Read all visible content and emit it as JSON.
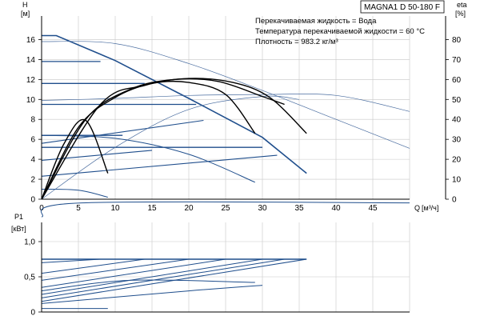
{
  "chart_data": [
    {
      "type": "line",
      "title": "MAGNA1 D 50-180 F",
      "info": [
        "Перекачиваемая жидкость = Вода",
        "Температура перекачиваемой жидкости = 60 °C",
        "Плотность = 983.2 кг/м³"
      ],
      "ylabel": "H",
      "yunit": "[м]",
      "y2label": "eta",
      "y2unit": "[%]",
      "xlabel": "Q",
      "xunit": "[м³/ч]",
      "xlim": [
        0,
        50
      ],
      "ylim": [
        0,
        17
      ],
      "y2lim": [
        0,
        85
      ],
      "xticks": [
        "0",
        "5",
        "10",
        "15",
        "20",
        "25",
        "30",
        "35",
        "40",
        "45"
      ],
      "yticks": [
        "0",
        "2",
        "4",
        "6",
        "8",
        "10",
        "12",
        "14",
        "16"
      ],
      "y2ticks": [
        "0",
        "10",
        "20",
        "30",
        "40",
        "50",
        "60",
        "70",
        "80"
      ],
      "series": [
        {
          "group": "max_curve",
          "color": "#1f4e8c",
          "points": [
            [
              0,
              16.4
            ],
            [
              2,
              16.4
            ],
            [
              10,
              13.9
            ],
            [
              20,
              10.1
            ],
            [
              30,
              6.2
            ],
            [
              36,
              2.6
            ]
          ]
        },
        {
          "group": "constant_pressure",
          "color": "#1f4e8c",
          "points": [
            [
              0,
              13.8
            ],
            [
              8,
              13.8
            ]
          ]
        },
        {
          "group": "constant_pressure",
          "color": "#1f4e8c",
          "points": [
            [
              0,
              11.6
            ],
            [
              14,
              11.6
            ]
          ]
        },
        {
          "group": "constant_pressure",
          "color": "#1f4e8c",
          "points": [
            [
              0,
              9.5
            ],
            [
              21,
              9.5
            ]
          ]
        },
        {
          "group": "constant_pressure",
          "color": "#1f4e8c",
          "points": [
            [
              0,
              6.4
            ],
            [
              11,
              6.4
            ]
          ]
        },
        {
          "group": "constant_pressure",
          "color": "#1f4e8c",
          "points": [
            [
              0,
              5.2
            ],
            [
              30,
              5.2
            ]
          ]
        },
        {
          "group": "proportional_pressure",
          "color": "#1f4e8c",
          "points": [
            [
              0,
              5.6
            ],
            [
              22,
              7.9
            ]
          ]
        },
        {
          "group": "proportional_pressure",
          "color": "#1f4e8c",
          "points": [
            [
              0,
              3.9
            ],
            [
              15,
              4.9
            ]
          ]
        },
        {
          "group": "proportional_pressure",
          "color": "#1f4e8c",
          "points": [
            [
              0,
              2.3
            ],
            [
              32,
              4.4
            ]
          ]
        },
        {
          "group": "fixed_curve",
          "color": "#1f4e8c",
          "points": [
            [
              0,
              6.4
            ],
            [
              10,
              6.1
            ],
            [
              20,
              4.5
            ],
            [
              29,
              1.7
            ]
          ]
        },
        {
          "group": "fixed_curve",
          "color": "#1f4e8c",
          "points": [
            [
              0,
              1.0
            ],
            [
              5,
              0.9
            ],
            [
              9,
              0.2
            ]
          ]
        },
        {
          "group": "system_curve",
          "color": "#4a6da0",
          "points": [
            [
              0,
              15.8
            ],
            [
              10,
              15.6
            ],
            [
              20,
              13.6
            ],
            [
              30,
              10.9
            ],
            [
              40,
              8.0
            ],
            [
              50,
              5.1
            ]
          ]
        },
        {
          "group": "system_curve",
          "color": "#4a6da0",
          "points": [
            [
              0,
              9.9
            ],
            [
              10,
              10.1
            ],
            [
              20,
              10.4
            ],
            [
              30,
              10.5
            ],
            [
              40,
              10.4
            ],
            [
              50,
              8.8
            ]
          ]
        },
        {
          "group": "system_curve",
          "color": "#4a6da0",
          "points": [
            [
              0,
              0
            ],
            [
              10,
              5.2
            ],
            [
              20,
              9.0
            ],
            [
              30,
              10.3
            ],
            [
              35,
              10.0
            ]
          ]
        },
        {
          "group": "efficiency",
          "color": "#000000",
          "points": [
            [
              0,
              0
            ],
            [
              3,
              5.5
            ],
            [
              6,
              7.9
            ],
            [
              9,
              2.6
            ]
          ]
        },
        {
          "group": "efficiency",
          "color": "#000000",
          "points": [
            [
              0,
              0
            ],
            [
              5,
              7.2
            ],
            [
              10,
              10.2
            ],
            [
              15,
              11.6
            ],
            [
              20,
              11.7
            ],
            [
              25,
              10.5
            ],
            [
              29,
              6.6
            ]
          ]
        },
        {
          "group": "efficiency",
          "color": "#000000",
          "points": [
            [
              0,
              0
            ],
            [
              6,
              8.0
            ],
            [
              12,
              11.0
            ],
            [
              18,
              12.0
            ],
            [
              24,
              11.8
            ],
            [
              30,
              10.3
            ],
            [
              33,
              9.5
            ]
          ]
        },
        {
          "group": "efficiency",
          "color": "#000000",
          "points": [
            [
              0,
              0
            ],
            [
              8,
              9.5
            ],
            [
              14,
              11.4
            ],
            [
              20,
              12.1
            ],
            [
              26,
              11.7
            ],
            [
              31,
              10.2
            ],
            [
              36,
              6.6
            ]
          ]
        }
      ]
    },
    {
      "type": "line",
      "ylabel": "P1",
      "yunit": "[кВт]",
      "xlim": [
        0,
        50
      ],
      "ylim": [
        0,
        1.5
      ],
      "yticks": [
        "0",
        "0,5",
        "1,0"
      ],
      "yticks_values": [
        0,
        0.5,
        1.0
      ],
      "series": [
        {
          "group": "power_max",
          "color": "#1f4e8c",
          "points": [
            [
              0,
              1.35
            ],
            [
              5.5,
              1.55
            ],
            [
              50,
              1.55
            ]
          ]
        },
        {
          "group": "power_limit",
          "color": "#1f4e8c",
          "points": [
            [
              0,
              0.75
            ],
            [
              36,
              0.75
            ]
          ]
        },
        {
          "group": "power",
          "color": "#1f4e8c",
          "points": [
            [
              0,
              0.7
            ],
            [
              8,
              0.75
            ]
          ]
        },
        {
          "group": "power",
          "color": "#1f4e8c",
          "points": [
            [
              0,
              0.55
            ],
            [
              14,
              0.75
            ]
          ]
        },
        {
          "group": "power",
          "color": "#1f4e8c",
          "points": [
            [
              0,
              0.45
            ],
            [
              20,
              0.75
            ]
          ]
        },
        {
          "group": "power",
          "color": "#1f4e8c",
          "points": [
            [
              0,
              0.35
            ],
            [
              25,
              0.75
            ]
          ]
        },
        {
          "group": "power",
          "color": "#1f4e8c",
          "points": [
            [
              0,
              0.25
            ],
            [
              30,
              0.75
            ]
          ]
        },
        {
          "group": "power",
          "color": "#1f4e8c",
          "points": [
            [
              0,
              0.2
            ],
            [
              33,
              0.75
            ]
          ]
        },
        {
          "group": "power",
          "color": "#1f4e8c",
          "points": [
            [
              0,
              0.15
            ],
            [
              36,
              0.75
            ]
          ]
        },
        {
          "group": "power",
          "color": "#1f4e8c",
          "points": [
            [
              0,
              0.3
            ],
            [
              12,
              0.45
            ],
            [
              29,
              0.42
            ]
          ]
        },
        {
          "group": "power",
          "color": "#1f4e8c",
          "points": [
            [
              0,
              0.12
            ],
            [
              20,
              0.3
            ],
            [
              30,
              0.38
            ]
          ]
        },
        {
          "group": "power",
          "color": "#1f4e8c",
          "points": [
            [
              0,
              0.05
            ],
            [
              9,
              0.05
            ]
          ]
        }
      ]
    }
  ]
}
